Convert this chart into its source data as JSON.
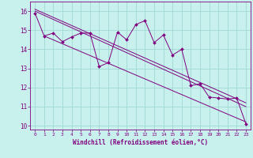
{
  "xlabel": "Windchill (Refroidissement éolien,°C)",
  "bg_color": "#c8f0ec",
  "line_color": "#800080",
  "grid_color": "#a0d8d4",
  "axis_color": "#800080",
  "xlim": [
    -0.5,
    23.5
  ],
  "ylim": [
    9.8,
    16.5
  ],
  "yticks": [
    10,
    11,
    12,
    13,
    14,
    15,
    16
  ],
  "xticks": [
    0,
    1,
    2,
    3,
    4,
    5,
    6,
    7,
    8,
    9,
    10,
    11,
    12,
    13,
    14,
    15,
    16,
    17,
    18,
    19,
    20,
    21,
    22,
    23
  ],
  "noisy_x": [
    0,
    1,
    2,
    3,
    4,
    5,
    6,
    7,
    8,
    9,
    10,
    11,
    12,
    13,
    14,
    15,
    16,
    17,
    18,
    19,
    20,
    21,
    22,
    23
  ],
  "noisy_y": [
    15.9,
    14.7,
    14.85,
    14.4,
    14.65,
    14.85,
    14.85,
    13.1,
    13.3,
    14.9,
    14.5,
    15.3,
    15.5,
    14.35,
    14.75,
    13.7,
    14.0,
    12.1,
    12.2,
    11.5,
    11.45,
    11.4,
    11.45,
    10.1
  ],
  "trend1_x": [
    0,
    23
  ],
  "trend1_y": [
    16.1,
    11.2
  ],
  "trend2_x": [
    0,
    23
  ],
  "trend2_y": [
    16.0,
    11.0
  ],
  "trend3_x": [
    1,
    23
  ],
  "trend3_y": [
    14.7,
    10.2
  ]
}
